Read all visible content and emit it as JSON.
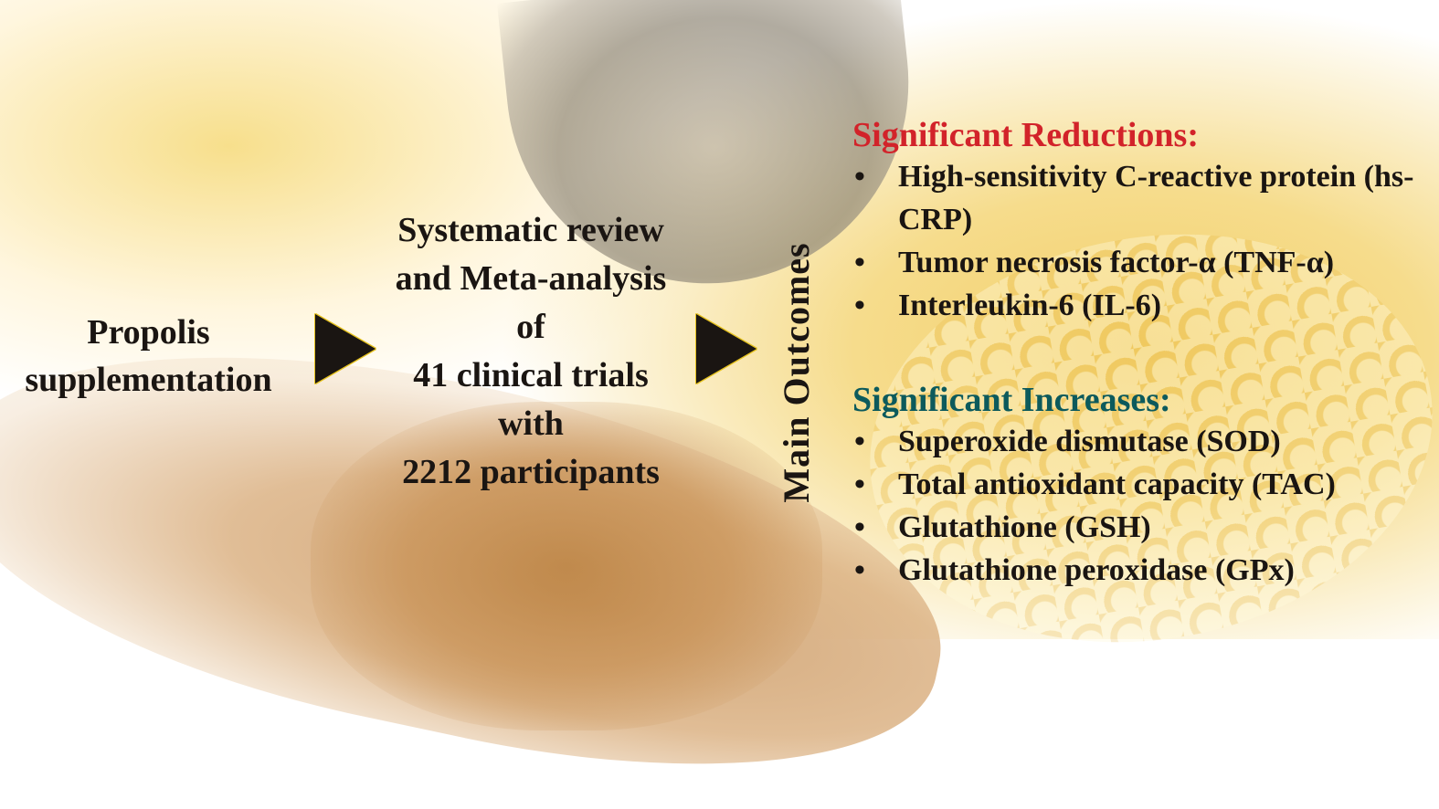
{
  "input": {
    "label": "Propolis supplementation"
  },
  "method": {
    "lines": [
      "Systematic review",
      "and Meta-analysis",
      "of",
      "41 clinical trials",
      "with",
      "2212 participants"
    ]
  },
  "outcomes_label": "Main Outcomes",
  "reductions": {
    "heading": "Significant Reductions:",
    "color": "#d2232a",
    "items": [
      "High-sensitivity C-reactive protein (hs-CRP)",
      "Tumor necrosis factor-α (TNF-α)",
      "Interleukin-6 (IL-6)"
    ]
  },
  "increases": {
    "heading": "Significant Increases:",
    "color": "#0c5a5c",
    "items": [
      "Superoxide dismutase (SOD)",
      "Total antioxidant capacity (TAC)",
      "Glutathione (GSH)",
      "Glutathione peroxidase (GPx)"
    ]
  },
  "bullet": "•"
}
